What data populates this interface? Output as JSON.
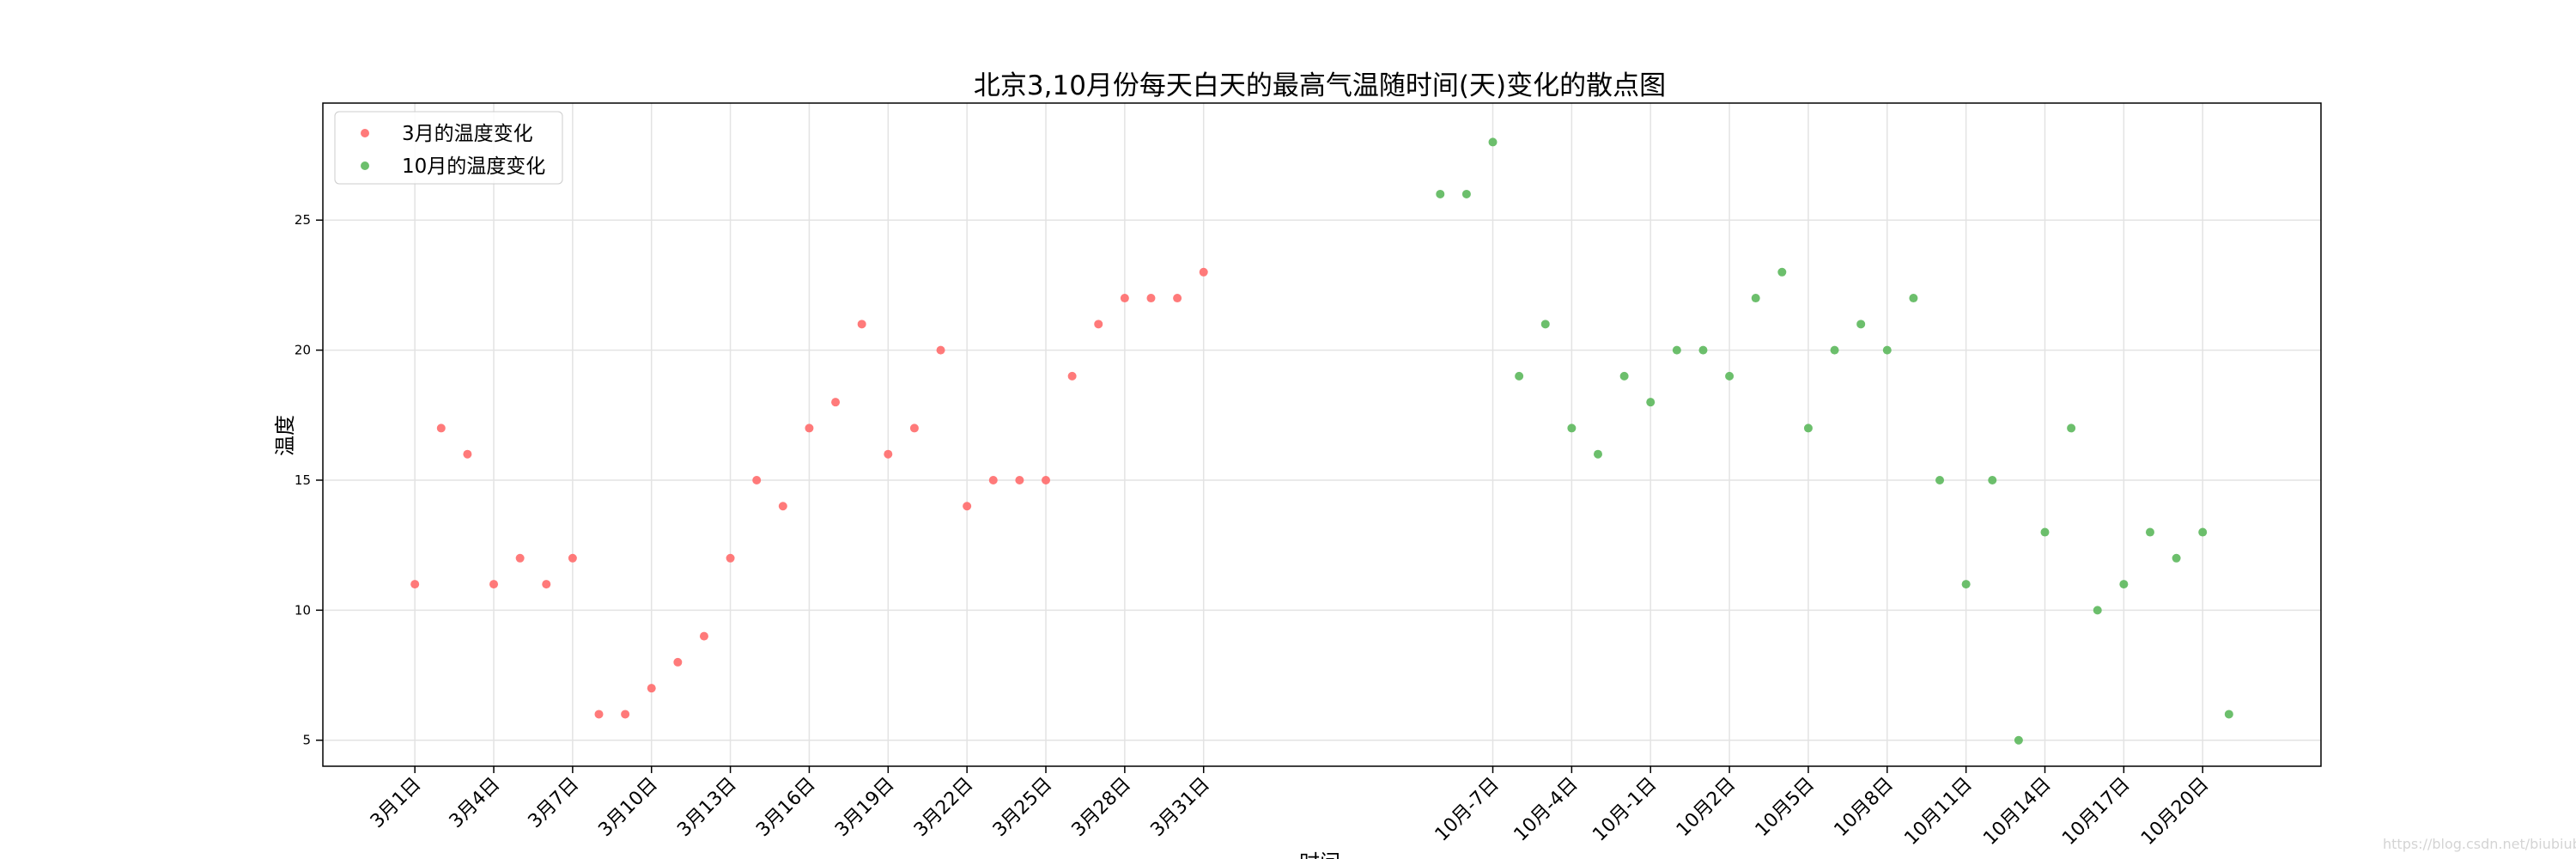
{
  "chart_data": {
    "type": "scatter",
    "title": "北京3,10月份每天白天的最高气温随时间(天)变化的散点图",
    "xlabel": "时间",
    "ylabel": "温度",
    "grid": true,
    "legend_position": "top-left",
    "ylim": [
      4,
      29.5
    ],
    "xlim": [
      -3.5,
      72.5
    ],
    "yticks": [
      5,
      10,
      15,
      20,
      25
    ],
    "xticks": [
      {
        "x": 0,
        "label": "3月1日"
      },
      {
        "x": 3,
        "label": "3月4日"
      },
      {
        "x": 6,
        "label": "3月7日"
      },
      {
        "x": 9,
        "label": "3月10日"
      },
      {
        "x": 12,
        "label": "3月13日"
      },
      {
        "x": 15,
        "label": "3月16日"
      },
      {
        "x": 18,
        "label": "3月19日"
      },
      {
        "x": 21,
        "label": "3月22日"
      },
      {
        "x": 24,
        "label": "3月25日"
      },
      {
        "x": 27,
        "label": "3月28日"
      },
      {
        "x": 30,
        "label": "3月31日"
      },
      {
        "x": 41,
        "label": "10月-7日"
      },
      {
        "x": 44,
        "label": "10月-4日"
      },
      {
        "x": 47,
        "label": "10月-1日"
      },
      {
        "x": 50,
        "label": "10月2日"
      },
      {
        "x": 53,
        "label": "10月5日"
      },
      {
        "x": 56,
        "label": "10月8日"
      },
      {
        "x": 59,
        "label": "10月11日"
      },
      {
        "x": 62,
        "label": "10月14日"
      },
      {
        "x": 65,
        "label": "10月17日"
      },
      {
        "x": 68,
        "label": "10月20日"
      }
    ],
    "series": [
      {
        "name": "3月的温度变化",
        "color": "#ff6b6b",
        "x": [
          0,
          1,
          2,
          3,
          4,
          5,
          6,
          7,
          8,
          9,
          10,
          11,
          12,
          13,
          14,
          15,
          16,
          17,
          18,
          19,
          20,
          21,
          22,
          23,
          24,
          25,
          26,
          27,
          28,
          29,
          30
        ],
        "values": [
          11,
          17,
          16,
          11,
          12,
          11,
          12,
          6,
          6,
          7,
          8,
          9,
          12,
          15,
          14,
          17,
          18,
          21,
          16,
          17,
          20,
          14,
          15,
          15,
          15,
          19,
          21,
          22,
          22,
          22,
          23
        ]
      },
      {
        "name": "10月的温度变化",
        "color": "#5cb85c",
        "x": [
          39,
          40,
          41,
          42,
          43,
          44,
          45,
          46,
          47,
          48,
          49,
          50,
          51,
          52,
          53,
          54,
          55,
          56,
          57,
          58,
          59,
          60,
          61,
          62,
          63,
          64,
          65,
          66,
          67,
          68,
          69
        ],
        "values": [
          26,
          26,
          28,
          19,
          21,
          17,
          16,
          19,
          18,
          20,
          20,
          19,
          22,
          23,
          17,
          20,
          21,
          20,
          22,
          15,
          11,
          15,
          5,
          13,
          17,
          10,
          11,
          13,
          12,
          13,
          6
        ]
      }
    ]
  },
  "watermark": "https://blog.csdn.net/biubiubiuAb"
}
